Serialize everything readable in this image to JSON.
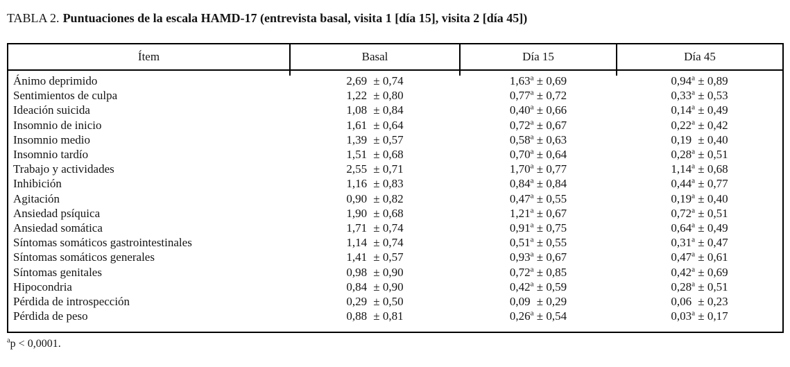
{
  "title": {
    "label": "TABLA 2.",
    "text": "Puntuaciones de la escala HAMD-17 (entrevista basal, visita 1 [día 15], visita 2 [día 45])"
  },
  "table": {
    "columns": [
      "Ítem",
      "Basal",
      "Día 15",
      "Día 45"
    ],
    "plus_minus": "±",
    "sup_char": "a",
    "rows": [
      {
        "item": "Ánimo deprimido",
        "basal": {
          "m": "2,69",
          "sig": false,
          "sd": "0,74"
        },
        "dia15": {
          "m": "1,63",
          "sig": true,
          "sd": "0,69"
        },
        "dia45": {
          "m": "0,94",
          "sig": true,
          "sd": "0,89"
        }
      },
      {
        "item": "Sentimientos de culpa",
        "basal": {
          "m": "1,22",
          "sig": false,
          "sd": "0,80"
        },
        "dia15": {
          "m": "0,77",
          "sig": true,
          "sd": "0,72"
        },
        "dia45": {
          "m": "0,33",
          "sig": true,
          "sd": "0,53"
        }
      },
      {
        "item": "Ideación suicida",
        "basal": {
          "m": "1,08",
          "sig": false,
          "sd": "0,84"
        },
        "dia15": {
          "m": "0,40",
          "sig": true,
          "sd": "0,66"
        },
        "dia45": {
          "m": "0,14",
          "sig": true,
          "sd": "0,49"
        }
      },
      {
        "item": "Insomnio de inicio",
        "basal": {
          "m": "1,61",
          "sig": false,
          "sd": "0,64"
        },
        "dia15": {
          "m": "0,72",
          "sig": true,
          "sd": "0,67"
        },
        "dia45": {
          "m": "0,22",
          "sig": true,
          "sd": "0,42"
        }
      },
      {
        "item": "Insomnio medio",
        "basal": {
          "m": "1,39",
          "sig": false,
          "sd": "0,57"
        },
        "dia15": {
          "m": "0,58",
          "sig": true,
          "sd": "0,63"
        },
        "dia45": {
          "m": "0,19",
          "sig": false,
          "sd": "0,40"
        }
      },
      {
        "item": "Insomnio tardío",
        "basal": {
          "m": "1,51",
          "sig": false,
          "sd": "0,68"
        },
        "dia15": {
          "m": "0,70",
          "sig": true,
          "sd": "0,64"
        },
        "dia45": {
          "m": "0,28",
          "sig": true,
          "sd": "0,51"
        }
      },
      {
        "item": "Trabajo y actividades",
        "basal": {
          "m": "2,55",
          "sig": false,
          "sd": "0,71"
        },
        "dia15": {
          "m": "1,70",
          "sig": true,
          "sd": "0,77"
        },
        "dia45": {
          "m": "1,14",
          "sig": true,
          "sd": "0,68"
        }
      },
      {
        "item": "Inhibición",
        "basal": {
          "m": "1,16",
          "sig": false,
          "sd": "0,83"
        },
        "dia15": {
          "m": "0,84",
          "sig": true,
          "sd": "0,84"
        },
        "dia45": {
          "m": "0,44",
          "sig": true,
          "sd": "0,77"
        }
      },
      {
        "item": "Agitación",
        "basal": {
          "m": "0,90",
          "sig": false,
          "sd": "0,82"
        },
        "dia15": {
          "m": "0,47",
          "sig": true,
          "sd": "0,55"
        },
        "dia45": {
          "m": "0,19",
          "sig": true,
          "sd": "0,40"
        }
      },
      {
        "item": "Ansiedad psíquica",
        "basal": {
          "m": "1,90",
          "sig": false,
          "sd": "0,68"
        },
        "dia15": {
          "m": "1,21",
          "sig": true,
          "sd": "0,67"
        },
        "dia45": {
          "m": "0,72",
          "sig": true,
          "sd": "0,51"
        }
      },
      {
        "item": "Ansiedad somática",
        "basal": {
          "m": "1,71",
          "sig": false,
          "sd": "0,74"
        },
        "dia15": {
          "m": "0,91",
          "sig": true,
          "sd": "0,75"
        },
        "dia45": {
          "m": "0,64",
          "sig": true,
          "sd": "0,49"
        }
      },
      {
        "item": "Síntomas somáticos gastrointestinales",
        "basal": {
          "m": "1,14",
          "sig": false,
          "sd": "0,74"
        },
        "dia15": {
          "m": "0,51",
          "sig": true,
          "sd": "0,55"
        },
        "dia45": {
          "m": "0,31",
          "sig": true,
          "sd": "0,47"
        }
      },
      {
        "item": "Síntomas somáticos generales",
        "basal": {
          "m": "1,41",
          "sig": false,
          "sd": "0,57"
        },
        "dia15": {
          "m": "0,93",
          "sig": true,
          "sd": "0,67"
        },
        "dia45": {
          "m": "0,47",
          "sig": true,
          "sd": "0,61"
        }
      },
      {
        "item": "Síntomas genitales",
        "basal": {
          "m": "0,98",
          "sig": false,
          "sd": "0,90"
        },
        "dia15": {
          "m": "0,72",
          "sig": true,
          "sd": "0,85"
        },
        "dia45": {
          "m": "0,42",
          "sig": true,
          "sd": "0,69"
        }
      },
      {
        "item": "Hipocondria",
        "basal": {
          "m": "0,84",
          "sig": false,
          "sd": "0,90"
        },
        "dia15": {
          "m": "0,42",
          "sig": true,
          "sd": "0,59"
        },
        "dia45": {
          "m": "0,28",
          "sig": true,
          "sd": "0,51"
        }
      },
      {
        "item": "Pérdida de introspección",
        "basal": {
          "m": "0,29",
          "sig": false,
          "sd": "0,50"
        },
        "dia15": {
          "m": "0,09",
          "sig": false,
          "sd": "0,29"
        },
        "dia45": {
          "m": "0,06",
          "sig": false,
          "sd": "0,23"
        }
      },
      {
        "item": "Pérdida de peso",
        "basal": {
          "m": "0,88",
          "sig": false,
          "sd": "0,81"
        },
        "dia15": {
          "m": "0,26",
          "sig": true,
          "sd": "0,54"
        },
        "dia45": {
          "m": "0,03",
          "sig": true,
          "sd": "0,17"
        }
      }
    ]
  },
  "footnote": {
    "sup_label": "a",
    "text": "p < 0,0001."
  }
}
